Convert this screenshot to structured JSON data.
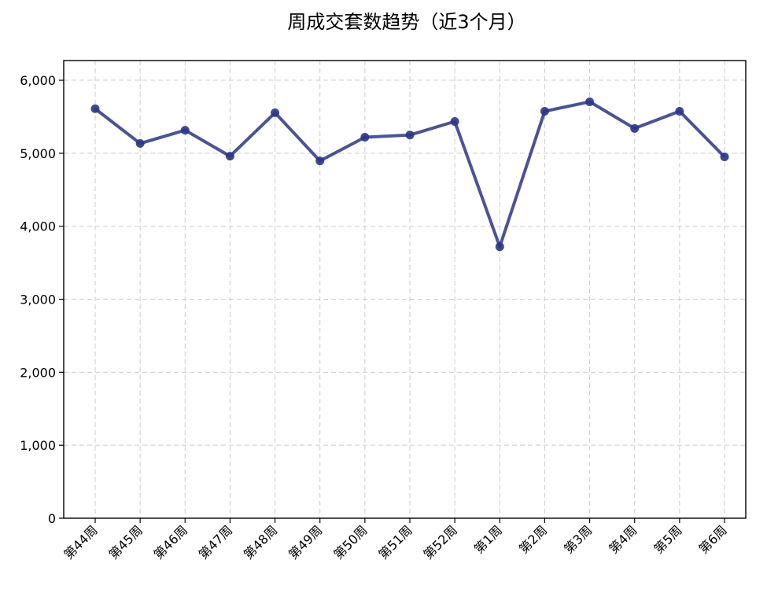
{
  "chart_data": {
    "type": "line",
    "title": "周成交套数趋势（近3个月）",
    "xlabel": "",
    "ylabel": "",
    "categories": [
      "第44周",
      "第45周",
      "第46周",
      "第47周",
      "第48周",
      "第49周",
      "第50周",
      "第51周",
      "第52周",
      "第1周",
      "第2周",
      "第3周",
      "第4周",
      "第5周",
      "第6周"
    ],
    "series": [
      {
        "values": [
          5610,
          5135,
          5315,
          4960,
          5555,
          4895,
          5220,
          5250,
          5435,
          3720,
          5575,
          5705,
          5340,
          5575,
          4950
        ],
        "color": "#2b3584"
      }
    ],
    "ylim": [
      0,
      6270
    ],
    "yticks": [
      0,
      1000,
      2000,
      3000,
      4000,
      5000,
      6000
    ],
    "ytick_labels": [
      "0",
      "1,000",
      "2,000",
      "3,000",
      "4,000",
      "5,000",
      "6,000"
    ],
    "grid": true,
    "legend": "none"
  }
}
